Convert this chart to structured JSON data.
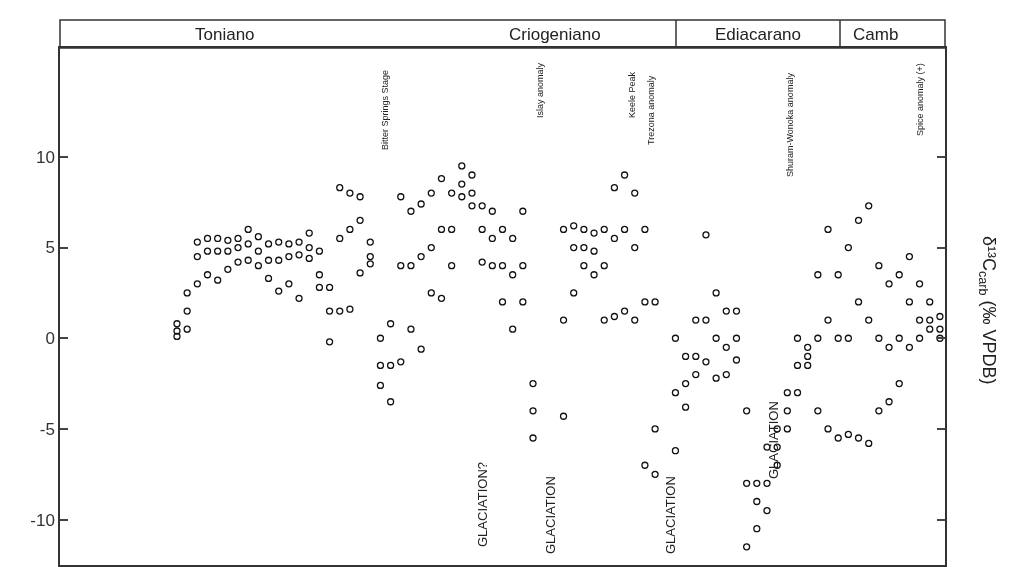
{
  "chart_data": {
    "type": "scatter",
    "ylabel": "δ¹³C$_{carb}$ (‰ VPDB)",
    "ylim": [
      -12.5,
      16
    ],
    "yticks": [
      -10,
      -5,
      0,
      5,
      10
    ],
    "tick_labels": "y",
    "marker": "circle",
    "categories": [
      null,
      null,
      null,
      null,
      null,
      null,
      null,
      null,
      null,
      null,
      null,
      null,
      null,
      null,
      null,
      null,
      null,
      null,
      null,
      null,
      null,
      null,
      null,
      null,
      null,
      null,
      null,
      null,
      null,
      null,
      null,
      null,
      null,
      null,
      null,
      null,
      null,
      null,
      null,
      null,
      null,
      null,
      null,
      null,
      null,
      null,
      null,
      null,
      null,
      null,
      null,
      null,
      null,
      null,
      null,
      null,
      null,
      null,
      null,
      null,
      null,
      null,
      null,
      null,
      null,
      null,
      null,
      null,
      null,
      null,
      null,
      null,
      null,
      null,
      null,
      null,
      null,
      null,
      null,
      null,
      null,
      null,
      null,
      null,
      null,
      null,
      null
    ],
    "series": [
      {
        "color": "#111111",
        "values": [
          null,
          null,
          null,
          null,
          null,
          null,
          null,
          null,
          null,
          null,
          null,
          0.8,
          2.5,
          5.3,
          5.5,
          5.5,
          5.4,
          5.5,
          6,
          5.6,
          5.2,
          5.3,
          5.2,
          5.3,
          5.8,
          4.8,
          2.8,
          8.3,
          8,
          7.8,
          5.3,
          0,
          0.8,
          7.8,
          7,
          7.4,
          8,
          8.8,
          8,
          9.5,
          9,
          7.3,
          7,
          6,
          5.5,
          7,
          -2.5,
          null,
          null,
          6,
          6.2,
          6,
          5.8,
          6,
          8.3,
          9,
          8,
          6,
          2,
          null,
          0,
          -1,
          1,
          5.7,
          2.5,
          1.5,
          1.5,
          -4,
          -8,
          -6,
          -5,
          -3,
          0,
          -0.5,
          3.5,
          6,
          3.5,
          5,
          6.5,
          7.3,
          4,
          3,
          3.5,
          4.5,
          3,
          2,
          1.2
        ]
      },
      {
        "color": "#111111",
        "values": [
          null,
          null,
          null,
          null,
          null,
          null,
          null,
          null,
          null,
          null,
          null,
          0.4,
          1.5,
          4.5,
          4.8,
          4.8,
          4.8,
          5,
          5.2,
          4.8,
          4.3,
          4.3,
          4.5,
          4.6,
          5,
          3.5,
          1.5,
          5.5,
          6,
          6.5,
          4.5,
          -1.5,
          -1.5,
          4,
          4,
          4.5,
          5,
          6,
          6,
          8.5,
          8,
          6,
          5.5,
          4,
          3.5,
          4,
          -4,
          null,
          null,
          1,
          5,
          5,
          4.8,
          4,
          5.5,
          6,
          5,
          2,
          -5,
          null,
          -3,
          -2.5,
          -1,
          1,
          0,
          -0.5,
          0,
          -8,
          -9,
          -8,
          -6,
          -4,
          -1.5,
          -1,
          0,
          1,
          0,
          0,
          2,
          1,
          0,
          -0.5,
          0,
          2,
          1,
          1,
          0.5
        ]
      },
      {
        "color": "#111111",
        "values": [
          null,
          null,
          null,
          null,
          null,
          null,
          null,
          null,
          null,
          null,
          null,
          0.1,
          0.5,
          3,
          3.5,
          3.2,
          3.8,
          4.2,
          4.3,
          4,
          3.3,
          2.6,
          3,
          2.2,
          4.4,
          2.8,
          -0.2,
          1.5,
          1.6,
          3.6,
          4.1,
          -2.6,
          -3.5,
          -1.3,
          0.5,
          -0.6,
          2.5,
          2.2,
          4,
          7.8,
          7.3,
          4.2,
          4,
          2,
          0.5,
          2,
          -5.5,
          null,
          null,
          -4.3,
          2.5,
          4,
          3.5,
          1,
          1.2,
          1.5,
          1,
          -7,
          -7.5,
          null,
          -6.2,
          -3.8,
          -2,
          -1.3,
          -2.2,
          -2,
          -1.2,
          -11.5,
          -10.5,
          -9.5,
          -7,
          -5,
          -3,
          -1.5,
          -4,
          -5,
          -5.5,
          -5.3,
          -5.5,
          -5.8,
          -4,
          -3.5,
          -2.5,
          -0.5,
          0,
          0.5,
          0
        ]
      }
    ],
    "annotations": [
      "Toniano",
      "Criogeniano",
      "Ediacarano",
      "Camb",
      "Bitter Springs Stage",
      "GLACIATION?",
      "Islay anomaly",
      "GLACIATION",
      "Keele Peak",
      "Trezona anomaly",
      "GLACIATION",
      "Shuram-Wonoka anomaly",
      "GLACIATION",
      "Spice anomaly (+)"
    ]
  }
}
